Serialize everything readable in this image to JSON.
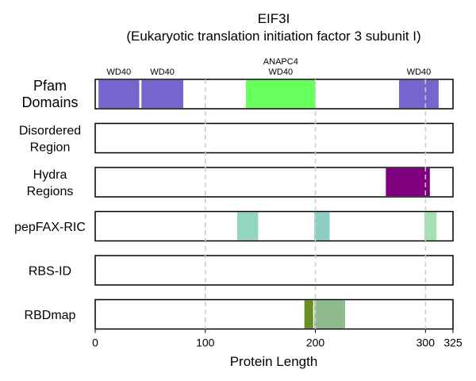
{
  "chart_data": {
    "type": "track",
    "title": "EIF3I",
    "subtitle": "(Eukaryotic translation initiation factor 3 subunit I)",
    "xlabel": "Protein Length",
    "xlim": [
      0,
      325
    ],
    "xticks": [
      0,
      100,
      200,
      300,
      325
    ],
    "gridlines": [
      100,
      200,
      300
    ],
    "grid": "dashed vertical",
    "tracks": [
      {
        "label_lines": [
          "Pfam",
          "Domains"
        ],
        "segments": [
          {
            "start": 3,
            "end": 40,
            "color": "#7466cc",
            "label": [
              "WD40"
            ]
          },
          {
            "start": 42,
            "end": 80,
            "color": "#7466cc",
            "label": [
              "WD40"
            ]
          },
          {
            "start": 137,
            "end": 200,
            "color": "#66ff5c",
            "label": [
              "ANAPC4",
              "WD40"
            ]
          },
          {
            "start": 276,
            "end": 312,
            "color": "#7466cc",
            "label": [
              "WD40"
            ]
          }
        ]
      },
      {
        "label_lines": [
          "Disordered",
          "Region"
        ],
        "segments": []
      },
      {
        "label_lines": [
          "Hydra",
          "Regions"
        ],
        "segments": [
          {
            "start": 264,
            "end": 304,
            "color": "#800080"
          }
        ]
      },
      {
        "label_lines": [
          "pepFAX-RIC"
        ],
        "segments": [
          {
            "start": 129,
            "end": 148,
            "color": "#93d6bf"
          },
          {
            "start": 199,
            "end": 213,
            "color": "#8ecfc5"
          },
          {
            "start": 299,
            "end": 310,
            "color": "#a3e0b3"
          }
        ]
      },
      {
        "label_lines": [
          "RBS-ID"
        ],
        "segments": []
      },
      {
        "label_lines": [
          "RBDmap"
        ],
        "segments": [
          {
            "start": 190,
            "end": 198,
            "color": "#6b8e23"
          },
          {
            "start": 199,
            "end": 227,
            "color": "#8fbc8f"
          }
        ]
      }
    ]
  }
}
